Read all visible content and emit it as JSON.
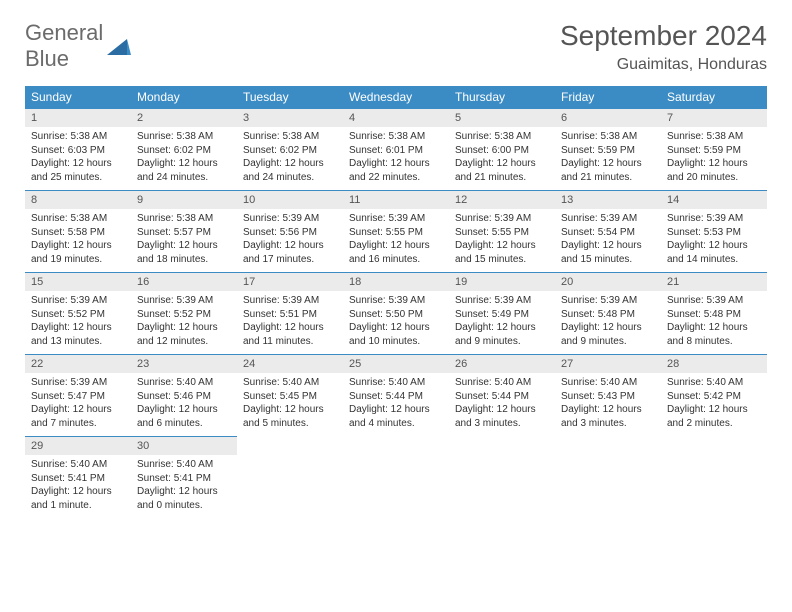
{
  "logo": {
    "line1": "General",
    "line2": "Blue"
  },
  "title": "September 2024",
  "location": "Guaimitas, Honduras",
  "header_bg": "#3b8bc4",
  "header_fg": "#ffffff",
  "daynum_bg": "#ebebeb",
  "border_color": "#3b8bc4",
  "body_font_size": 10,
  "dayHeaders": [
    "Sunday",
    "Monday",
    "Tuesday",
    "Wednesday",
    "Thursday",
    "Friday",
    "Saturday"
  ],
  "weeks": [
    [
      {
        "n": "1",
        "sr": "Sunrise: 5:38 AM",
        "ss": "Sunset: 6:03 PM",
        "dl": "Daylight: 12 hours and 25 minutes."
      },
      {
        "n": "2",
        "sr": "Sunrise: 5:38 AM",
        "ss": "Sunset: 6:02 PM",
        "dl": "Daylight: 12 hours and 24 minutes."
      },
      {
        "n": "3",
        "sr": "Sunrise: 5:38 AM",
        "ss": "Sunset: 6:02 PM",
        "dl": "Daylight: 12 hours and 24 minutes."
      },
      {
        "n": "4",
        "sr": "Sunrise: 5:38 AM",
        "ss": "Sunset: 6:01 PM",
        "dl": "Daylight: 12 hours and 22 minutes."
      },
      {
        "n": "5",
        "sr": "Sunrise: 5:38 AM",
        "ss": "Sunset: 6:00 PM",
        "dl": "Daylight: 12 hours and 21 minutes."
      },
      {
        "n": "6",
        "sr": "Sunrise: 5:38 AM",
        "ss": "Sunset: 5:59 PM",
        "dl": "Daylight: 12 hours and 21 minutes."
      },
      {
        "n": "7",
        "sr": "Sunrise: 5:38 AM",
        "ss": "Sunset: 5:59 PM",
        "dl": "Daylight: 12 hours and 20 minutes."
      }
    ],
    [
      {
        "n": "8",
        "sr": "Sunrise: 5:38 AM",
        "ss": "Sunset: 5:58 PM",
        "dl": "Daylight: 12 hours and 19 minutes."
      },
      {
        "n": "9",
        "sr": "Sunrise: 5:38 AM",
        "ss": "Sunset: 5:57 PM",
        "dl": "Daylight: 12 hours and 18 minutes."
      },
      {
        "n": "10",
        "sr": "Sunrise: 5:39 AM",
        "ss": "Sunset: 5:56 PM",
        "dl": "Daylight: 12 hours and 17 minutes."
      },
      {
        "n": "11",
        "sr": "Sunrise: 5:39 AM",
        "ss": "Sunset: 5:55 PM",
        "dl": "Daylight: 12 hours and 16 minutes."
      },
      {
        "n": "12",
        "sr": "Sunrise: 5:39 AM",
        "ss": "Sunset: 5:55 PM",
        "dl": "Daylight: 12 hours and 15 minutes."
      },
      {
        "n": "13",
        "sr": "Sunrise: 5:39 AM",
        "ss": "Sunset: 5:54 PM",
        "dl": "Daylight: 12 hours and 15 minutes."
      },
      {
        "n": "14",
        "sr": "Sunrise: 5:39 AM",
        "ss": "Sunset: 5:53 PM",
        "dl": "Daylight: 12 hours and 14 minutes."
      }
    ],
    [
      {
        "n": "15",
        "sr": "Sunrise: 5:39 AM",
        "ss": "Sunset: 5:52 PM",
        "dl": "Daylight: 12 hours and 13 minutes."
      },
      {
        "n": "16",
        "sr": "Sunrise: 5:39 AM",
        "ss": "Sunset: 5:52 PM",
        "dl": "Daylight: 12 hours and 12 minutes."
      },
      {
        "n": "17",
        "sr": "Sunrise: 5:39 AM",
        "ss": "Sunset: 5:51 PM",
        "dl": "Daylight: 12 hours and 11 minutes."
      },
      {
        "n": "18",
        "sr": "Sunrise: 5:39 AM",
        "ss": "Sunset: 5:50 PM",
        "dl": "Daylight: 12 hours and 10 minutes."
      },
      {
        "n": "19",
        "sr": "Sunrise: 5:39 AM",
        "ss": "Sunset: 5:49 PM",
        "dl": "Daylight: 12 hours and 9 minutes."
      },
      {
        "n": "20",
        "sr": "Sunrise: 5:39 AM",
        "ss": "Sunset: 5:48 PM",
        "dl": "Daylight: 12 hours and 9 minutes."
      },
      {
        "n": "21",
        "sr": "Sunrise: 5:39 AM",
        "ss": "Sunset: 5:48 PM",
        "dl": "Daylight: 12 hours and 8 minutes."
      }
    ],
    [
      {
        "n": "22",
        "sr": "Sunrise: 5:39 AM",
        "ss": "Sunset: 5:47 PM",
        "dl": "Daylight: 12 hours and 7 minutes."
      },
      {
        "n": "23",
        "sr": "Sunrise: 5:40 AM",
        "ss": "Sunset: 5:46 PM",
        "dl": "Daylight: 12 hours and 6 minutes."
      },
      {
        "n": "24",
        "sr": "Sunrise: 5:40 AM",
        "ss": "Sunset: 5:45 PM",
        "dl": "Daylight: 12 hours and 5 minutes."
      },
      {
        "n": "25",
        "sr": "Sunrise: 5:40 AM",
        "ss": "Sunset: 5:44 PM",
        "dl": "Daylight: 12 hours and 4 minutes."
      },
      {
        "n": "26",
        "sr": "Sunrise: 5:40 AM",
        "ss": "Sunset: 5:44 PM",
        "dl": "Daylight: 12 hours and 3 minutes."
      },
      {
        "n": "27",
        "sr": "Sunrise: 5:40 AM",
        "ss": "Sunset: 5:43 PM",
        "dl": "Daylight: 12 hours and 3 minutes."
      },
      {
        "n": "28",
        "sr": "Sunrise: 5:40 AM",
        "ss": "Sunset: 5:42 PM",
        "dl": "Daylight: 12 hours and 2 minutes."
      }
    ],
    [
      {
        "n": "29",
        "sr": "Sunrise: 5:40 AM",
        "ss": "Sunset: 5:41 PM",
        "dl": "Daylight: 12 hours and 1 minute."
      },
      {
        "n": "30",
        "sr": "Sunrise: 5:40 AM",
        "ss": "Sunset: 5:41 PM",
        "dl": "Daylight: 12 hours and 0 minutes."
      },
      null,
      null,
      null,
      null,
      null
    ]
  ]
}
